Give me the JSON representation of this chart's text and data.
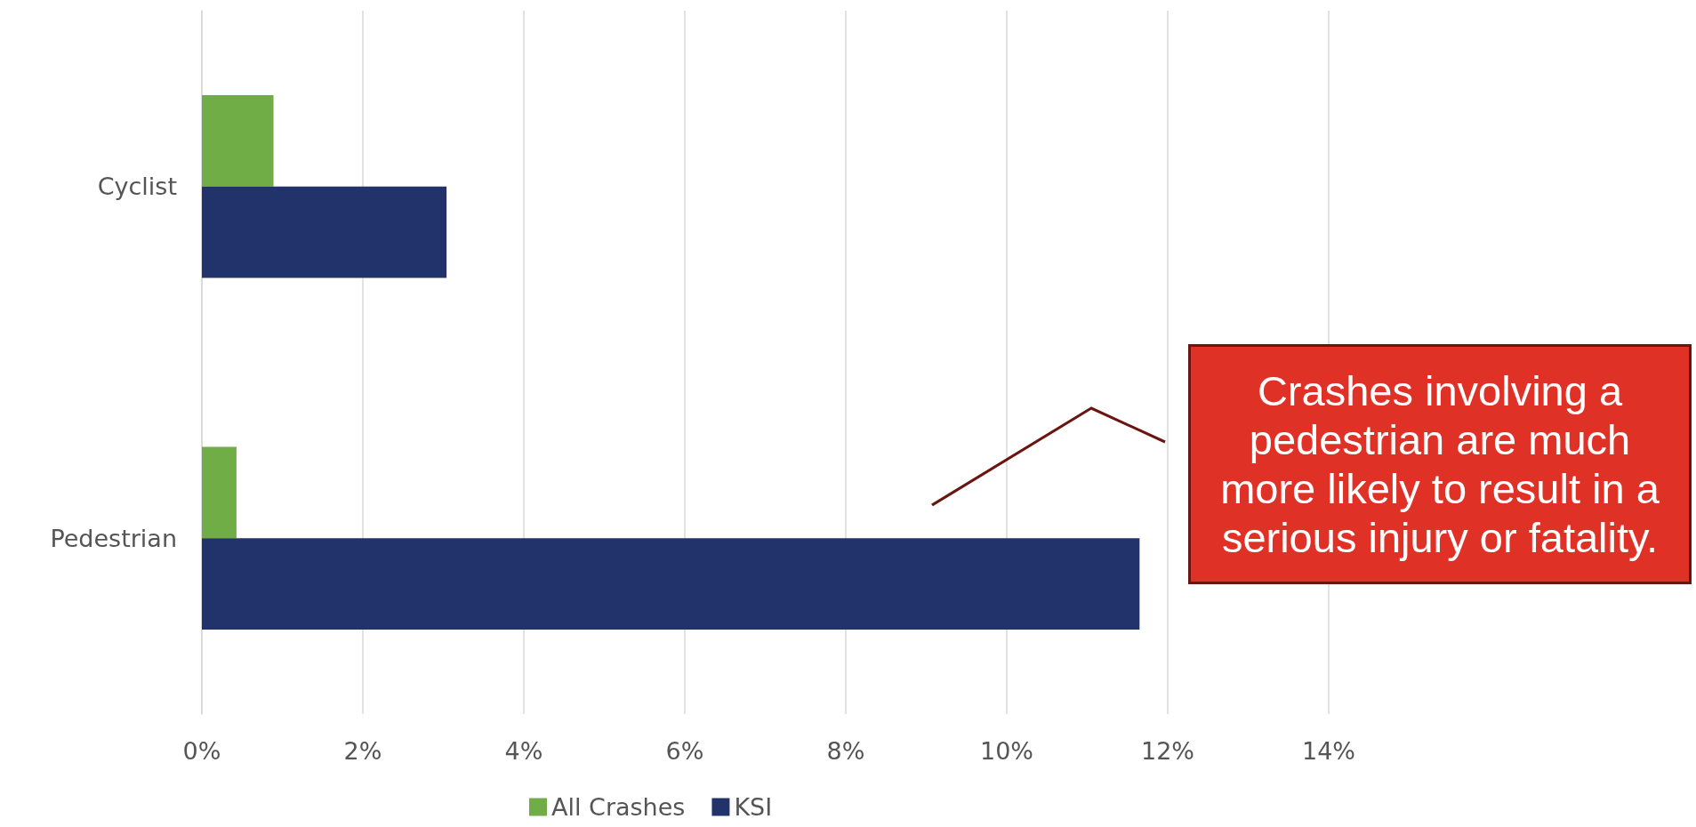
{
  "chart_data": {
    "type": "bar",
    "orientation": "horizontal",
    "categories": [
      "Cyclist",
      "Pedestrian"
    ],
    "series": [
      {
        "name": "All Crashes",
        "color": "#70ad47",
        "values": [
          0.89,
          0.43
        ]
      },
      {
        "name": "KSI",
        "color": "#22336b",
        "values": [
          3.04,
          11.65
        ]
      }
    ],
    "xlim": [
      0,
      14
    ],
    "xticks": [
      {
        "value": 0,
        "label": "0%"
      },
      {
        "value": 2,
        "label": "2%"
      },
      {
        "value": 4,
        "label": "4%"
      },
      {
        "value": 6,
        "label": "6%"
      },
      {
        "value": 8,
        "label": "8%"
      },
      {
        "value": 10,
        "label": "10%"
      },
      {
        "value": 12,
        "label": "12%"
      },
      {
        "value": 14,
        "label": "14%"
      }
    ],
    "grid": "x",
    "legend": "bottom",
    "annotations": [
      "Crashes involving a pedestrian are much more likely to result in a serious injury or fatality."
    ]
  }
}
